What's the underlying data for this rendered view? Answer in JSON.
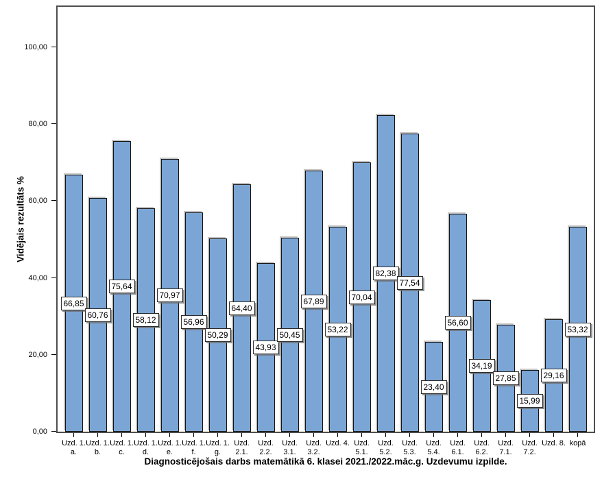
{
  "chart_data": {
    "type": "bar",
    "title": "Diagnosticējošais darbs matemātikā 6. klasei 2021./2022.māc.g. Uzdevumu izpilde.",
    "ylabel": "Vidējais rezultāts %",
    "xlabel": "",
    "categories": [
      [
        "Uzd. 1.",
        "a."
      ],
      [
        "Uzd. 1.",
        "b."
      ],
      [
        "Uzd. 1.",
        "c."
      ],
      [
        "Uzd. 1.",
        "d."
      ],
      [
        "Uzd. 1.",
        "e."
      ],
      [
        "Uzd. 1.",
        "f."
      ],
      [
        "Uzd. 1.",
        "g."
      ],
      [
        "Uzd.",
        "2.1."
      ],
      [
        "Uzd.",
        "2.2."
      ],
      [
        "Uzd.",
        "3.1."
      ],
      [
        "Uzd.",
        "3.2."
      ],
      [
        "Uzd. 4."
      ],
      [
        "Uzd.",
        "5.1."
      ],
      [
        "Uzd.",
        "5.2."
      ],
      [
        "Uzd.",
        "5.3."
      ],
      [
        "Uzd.",
        "5.4."
      ],
      [
        "Uzd.",
        "6.1."
      ],
      [
        "Uzd.",
        "6.2."
      ],
      [
        "Uzd.",
        "7.1."
      ],
      [
        "Uzd.",
        "7.2."
      ],
      [
        "Uzd. 8."
      ],
      [
        "kopā"
      ]
    ],
    "values": [
      66.85,
      60.76,
      75.64,
      58.12,
      70.97,
      56.96,
      50.29,
      64.4,
      43.93,
      50.45,
      67.89,
      53.22,
      70.04,
      82.38,
      77.54,
      23.4,
      56.6,
      34.19,
      27.85,
      15.99,
      29.16,
      53.32
    ],
    "value_labels": [
      "66,85",
      "60,76",
      "75,64",
      "58,12",
      "70,97",
      "56,96",
      "50,29",
      "64,40",
      "43,93",
      "50,45",
      "67,89",
      "53,22",
      "70,04",
      "82,38",
      "77,54",
      "23,40",
      "56,60",
      "34,19",
      "27,85",
      "15,99",
      "29,16",
      "53,32"
    ],
    "yticks": {
      "values": [
        0,
        20,
        40,
        60,
        80,
        100
      ],
      "labels": [
        "0,00",
        "20,00",
        "40,00",
        "60,00",
        "80,00",
        "100,00"
      ]
    },
    "ylim": [
      0,
      110.5
    ],
    "grid": false,
    "legend": null,
    "bar_color": "#7ba5d5",
    "bar_border_color": "#151515",
    "frame_color": "#4d4d4d"
  }
}
